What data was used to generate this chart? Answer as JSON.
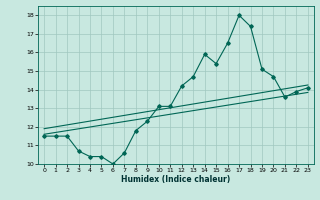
{
  "title": "",
  "xlabel": "Humidex (Indice chaleur)",
  "xlim": [
    -0.5,
    23.5
  ],
  "ylim": [
    10,
    18.5
  ],
  "yticks": [
    10,
    11,
    12,
    13,
    14,
    15,
    16,
    17,
    18
  ],
  "xticks": [
    0,
    1,
    2,
    3,
    4,
    5,
    6,
    7,
    8,
    9,
    10,
    11,
    12,
    13,
    14,
    15,
    16,
    17,
    18,
    19,
    20,
    21,
    22,
    23
  ],
  "bg_color": "#c8e8e0",
  "grid_color": "#a0c8c0",
  "line_color": "#006655",
  "line1_x": [
    0,
    1,
    2,
    3,
    4,
    5,
    6,
    7,
    8,
    9,
    10,
    11,
    12,
    13,
    14,
    15,
    16,
    17,
    18,
    19,
    20,
    21,
    22,
    23
  ],
  "line1_y": [
    11.5,
    11.5,
    11.5,
    10.7,
    10.4,
    10.4,
    10.0,
    10.6,
    11.8,
    12.3,
    13.1,
    13.1,
    14.2,
    14.7,
    15.9,
    15.4,
    16.5,
    18.0,
    17.4,
    15.1,
    14.7,
    13.6,
    13.9,
    14.1
  ],
  "line2_x": [
    0,
    23
  ],
  "line2_y": [
    11.9,
    14.25
  ],
  "line3_x": [
    0,
    23
  ],
  "line3_y": [
    11.6,
    13.85
  ]
}
